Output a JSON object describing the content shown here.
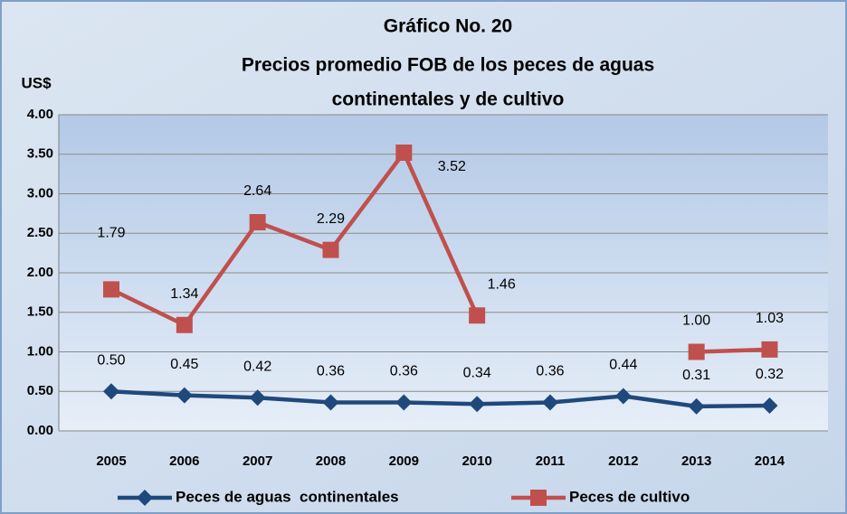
{
  "chart_data": {
    "type": "line",
    "title": "Gráfico No. 20",
    "subtitle": [
      "Precios promedio FOB de los peces de aguas",
      "continentales y de cultivo"
    ],
    "ylabel": "US$",
    "categories": [
      "2005",
      "2006",
      "2007",
      "2008",
      "2009",
      "2010",
      "2011",
      "2012",
      "2013",
      "2014"
    ],
    "series": [
      {
        "name": "Peces de aguas  continentales",
        "color": "#1f497d",
        "marker": "diamond",
        "values": [
          0.5,
          0.45,
          0.42,
          0.36,
          0.36,
          0.34,
          0.36,
          0.44,
          0.31,
          0.32
        ],
        "value_labels": [
          "0.50",
          "0.45",
          "0.42",
          "0.36",
          "0.36",
          "0.34",
          "0.36",
          "0.44",
          "0.31",
          "0.32"
        ]
      },
      {
        "name": "Peces de cultivo",
        "color": "#c0504d",
        "marker": "square",
        "values": [
          1.79,
          1.34,
          2.64,
          2.29,
          3.52,
          1.46,
          null,
          null,
          1.0,
          1.03
        ],
        "value_labels": [
          "1.79",
          "1.34",
          "2.64",
          "2.29",
          "3.52",
          "1.46",
          null,
          null,
          "1.00",
          "1.03"
        ]
      }
    ],
    "ylim": [
      0,
      4
    ],
    "yticks": [
      {
        "value": 0,
        "label": "0.00"
      },
      {
        "value": 0.5,
        "label": "0.50"
      },
      {
        "value": 1,
        "label": "1.00"
      },
      {
        "value": 1.5,
        "label": "1.50"
      },
      {
        "value": 2,
        "label": "2.00"
      },
      {
        "value": 2.5,
        "label": "2.50"
      },
      {
        "value": 3,
        "label": "3.00"
      },
      {
        "value": 3.5,
        "label": "3.50"
      },
      {
        "value": 4,
        "label": "4.00"
      }
    ],
    "grid": true,
    "legend": "bottom"
  }
}
